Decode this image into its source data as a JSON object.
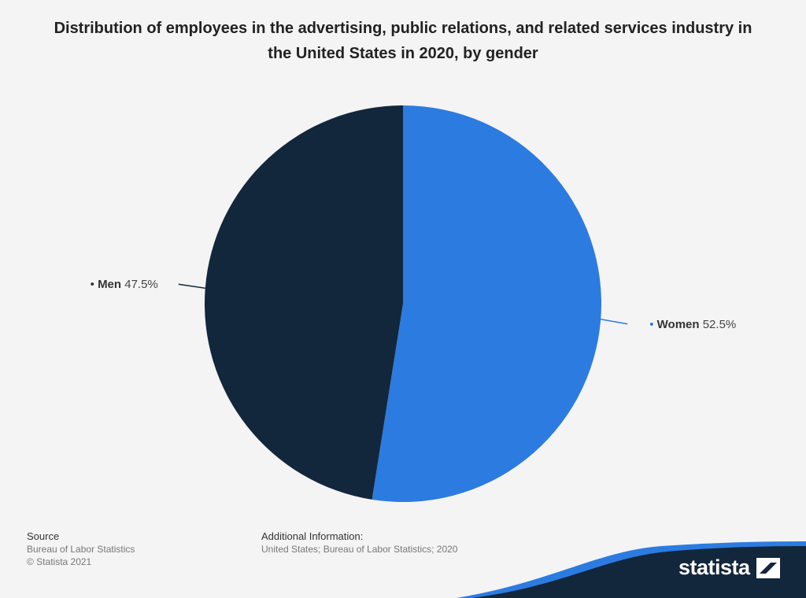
{
  "chart_data": {
    "type": "pie",
    "title": "Distribution of employees in the advertising, public relations, and related services industry in the United States in 2020, by gender",
    "slices": [
      {
        "label": "Women",
        "value": 52.5,
        "display": "52.5%",
        "color": "#2c7be0"
      },
      {
        "label": "Men",
        "value": 47.5,
        "display": "47.5%",
        "color": "#12263c"
      }
    ]
  },
  "footer": {
    "source_heading": "Source",
    "source_text": "Bureau of Labor Statistics",
    "copyright": "© Statista 2021",
    "info_heading": "Additional Information:",
    "info_text": "United States; Bureau of Labor Statistics; 2020"
  },
  "brand": {
    "name": "statista"
  }
}
